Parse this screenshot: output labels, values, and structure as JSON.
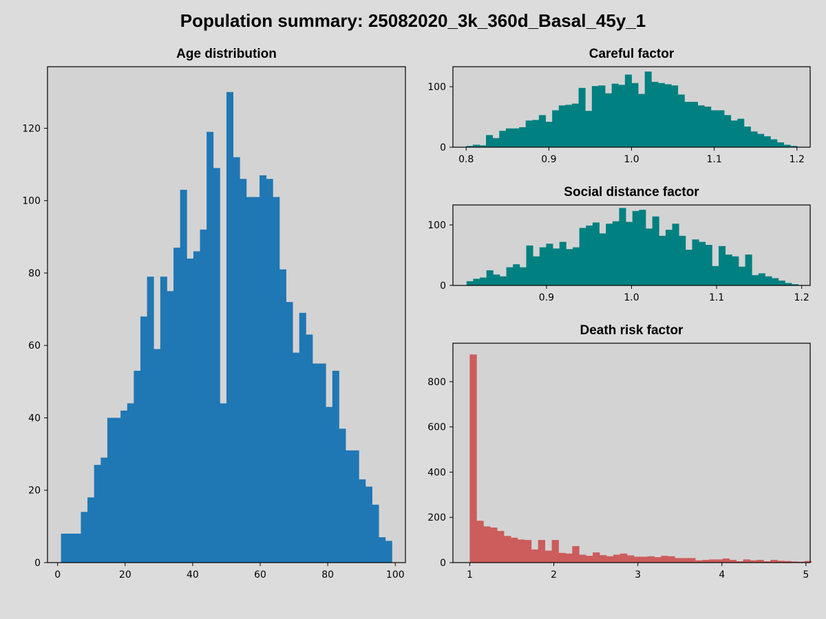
{
  "figure": {
    "title": "Population summary: 25082020_3k_360d_Basal_45y_1",
    "background": "#dcdcdc",
    "axes_background": "#d3d3d3"
  },
  "chart_data": [
    {
      "id": "age",
      "type": "histogram",
      "title": "Age distribution",
      "color": "#1f77b4",
      "xlim": [
        -3,
        103
      ],
      "ylim": [
        0,
        137
      ],
      "xticks": [
        0,
        20,
        40,
        60,
        80,
        100
      ],
      "yticks": [
        0,
        20,
        40,
        60,
        80,
        100,
        120
      ],
      "bin_start": 1,
      "bin_width": 1.96,
      "values": [
        8,
        8,
        8,
        14,
        18,
        27,
        29,
        40,
        40,
        42,
        44,
        53,
        68,
        79,
        59,
        79,
        75,
        87,
        103,
        84,
        86,
        92,
        119,
        109,
        44,
        130,
        112,
        106,
        101,
        101,
        107,
        106,
        101,
        81,
        72,
        58,
        69,
        63,
        55,
        55,
        43,
        53,
        37,
        31,
        31,
        23,
        21,
        16,
        7,
        6
      ]
    },
    {
      "id": "careful",
      "type": "histogram",
      "title": "Careful factor",
      "color": "#008080",
      "xlim": [
        0.784,
        1.216
      ],
      "ylim": [
        0,
        133
      ],
      "xticks": [
        0.8,
        0.9,
        1.0,
        1.1,
        1.2
      ],
      "tick_labels": [
        "0.8",
        "0.9",
        "1.0",
        "1.1",
        "1.2"
      ],
      "yticks": [
        0,
        100
      ],
      "bin_start": 0.8,
      "bin_width": 0.008,
      "values": [
        2,
        4,
        3,
        20,
        15,
        27,
        31,
        31,
        33,
        44,
        45,
        53,
        42,
        61,
        69,
        70,
        72,
        98,
        60,
        101,
        102,
        89,
        105,
        103,
        120,
        106,
        88,
        125,
        108,
        106,
        104,
        102,
        87,
        75,
        75,
        69,
        67,
        61,
        61,
        53,
        44,
        47,
        34,
        26,
        22,
        18,
        13,
        8,
        4,
        2
      ]
    },
    {
      "id": "social",
      "type": "histogram",
      "title": "Social distance factor",
      "color": "#008080",
      "xlim": [
        0.79,
        1.21
      ],
      "ylim": [
        0,
        133
      ],
      "xticks": [
        0.9,
        1.0,
        1.1,
        1.2
      ],
      "tick_labels": [
        "0.9",
        "1.0",
        "1.1",
        "1.2"
      ],
      "yticks": [
        0,
        100
      ],
      "bin_start": 0.806,
      "bin_width": 0.0078,
      "values": [
        7,
        11,
        13,
        25,
        18,
        15,
        30,
        35,
        30,
        66,
        48,
        63,
        69,
        61,
        72,
        60,
        63,
        95,
        99,
        104,
        86,
        102,
        106,
        128,
        105,
        123,
        125,
        94,
        114,
        82,
        92,
        102,
        82,
        59,
        76,
        72,
        67,
        32,
        65,
        51,
        48,
        31,
        51,
        17,
        20,
        15,
        12,
        8,
        4,
        2
      ]
    },
    {
      "id": "death",
      "type": "histogram",
      "title": "Death risk factor",
      "color": "#cd5c5c",
      "xlim": [
        0.8,
        5.05
      ],
      "ylim": [
        0,
        970
      ],
      "xticks": [
        1,
        2,
        3,
        4,
        5
      ],
      "tick_labels": [
        "1",
        "2",
        "3",
        "4",
        "5"
      ],
      "yticks": [
        0,
        200,
        400,
        600,
        800
      ],
      "bin_start": 1.0,
      "bin_width": 0.0813,
      "values": [
        920,
        185,
        160,
        155,
        140,
        118,
        110,
        102,
        100,
        58,
        100,
        53,
        100,
        43,
        40,
        73,
        35,
        30,
        45,
        33,
        28,
        35,
        40,
        32,
        26,
        26,
        28,
        24,
        30,
        28,
        20,
        20,
        20,
        10,
        12,
        14,
        14,
        18,
        12,
        6,
        14,
        10,
        12,
        6,
        12,
        8,
        7,
        5,
        4,
        7
      ]
    }
  ]
}
